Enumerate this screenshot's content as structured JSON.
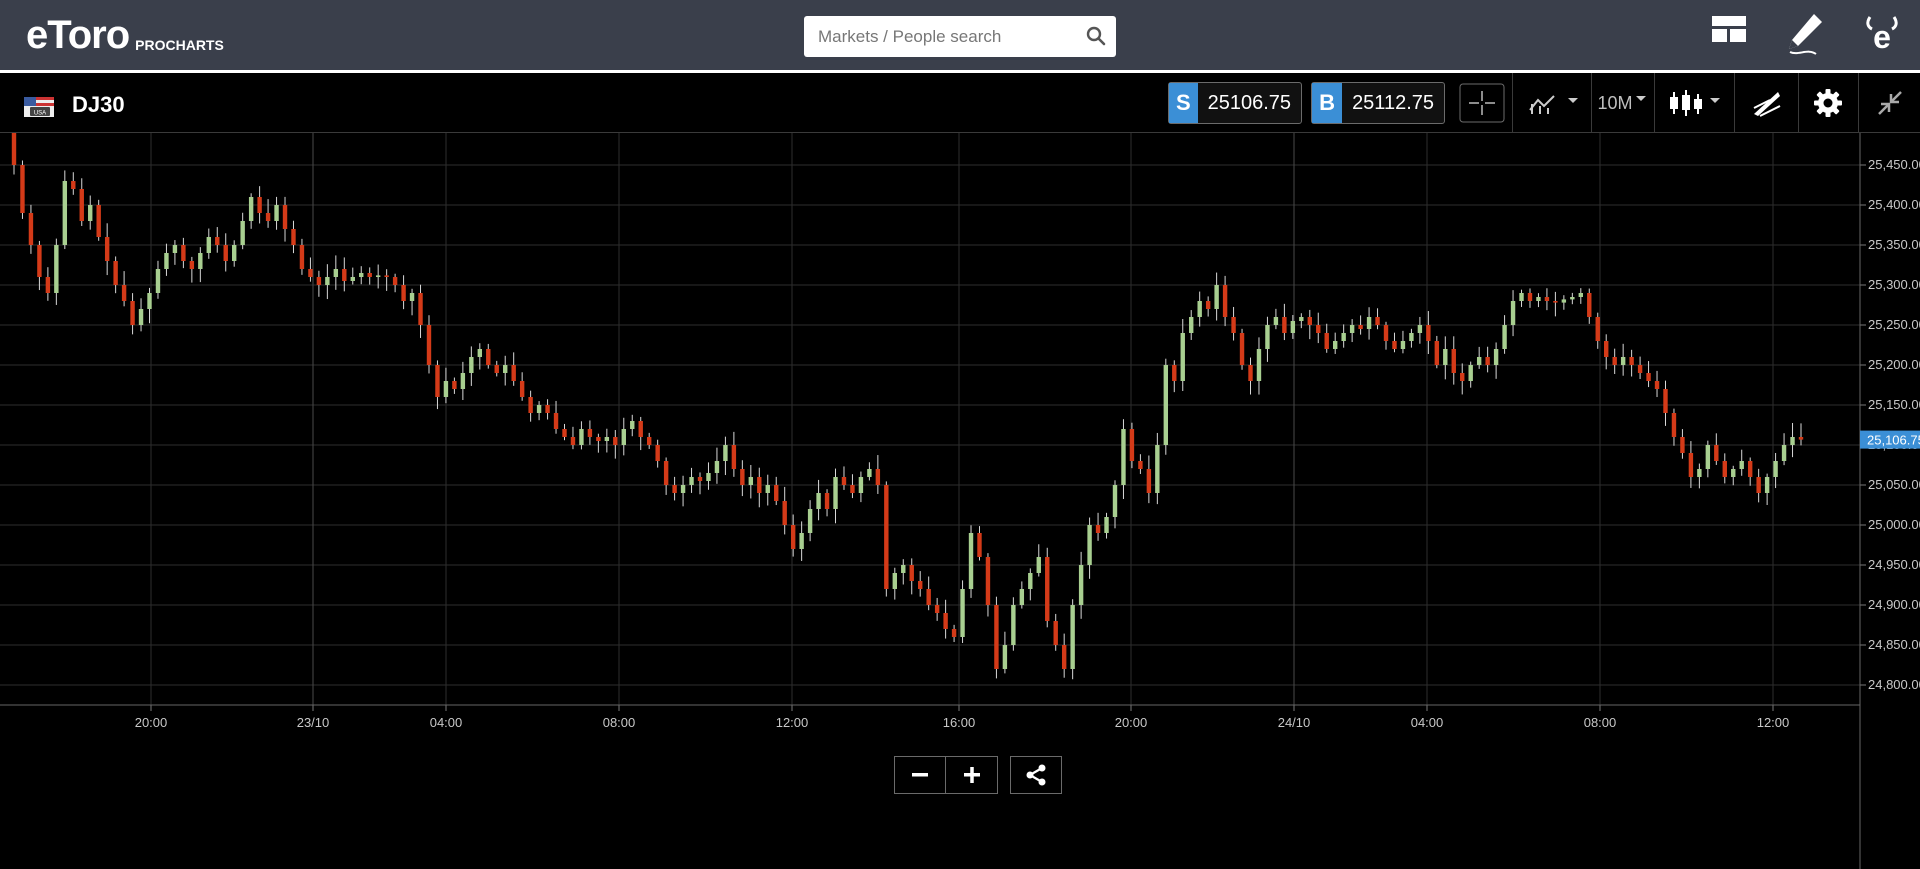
{
  "header": {
    "logo_text": "eToro",
    "logo_sub": "PROCHARTS",
    "search_placeholder": "Markets / People search"
  },
  "toolbar": {
    "instrument": "DJ30",
    "flag_label": "USA",
    "sell_tag": "S",
    "sell_price": "25106.75",
    "buy_tag": "B",
    "buy_price": "25112.75",
    "interval": "10M"
  },
  "chart_data": {
    "type": "candlestick",
    "instrument": "DJ30",
    "ylim": [
      24775,
      25490
    ],
    "y_ticks": [
      "25,450.00",
      "25,400.00",
      "25,350.00",
      "25,300.00",
      "25,250.00",
      "25,200.00",
      "25,150.00",
      "25,100.00",
      "25,050.00",
      "25,000.00",
      "24,950.00",
      "24,900.00",
      "24,850.00",
      "24,800.00"
    ],
    "y_tick_values": [
      25450,
      25400,
      25350,
      25300,
      25250,
      25200,
      25150,
      25100,
      25050,
      25000,
      24950,
      24900,
      24850,
      24800
    ],
    "x_ticks": [
      "20:00",
      "23/10",
      "04:00",
      "08:00",
      "12:00",
      "16:00",
      "20:00",
      "24/10",
      "04:00",
      "08:00",
      "12:00"
    ],
    "current_price": 25106.75,
    "current_price_label": "25,106.75",
    "colors": {
      "up": "#a8cf90",
      "down": "#d43a18",
      "grid": "#2e2e2e",
      "price_tag": "#3b8fd6"
    },
    "closes": [
      25450,
      25390,
      25350,
      25310,
      25290,
      25350,
      25430,
      25420,
      25380,
      25400,
      25360,
      25330,
      25300,
      25280,
      25250,
      25270,
      25290,
      25320,
      25340,
      25350,
      25330,
      25320,
      25340,
      25360,
      25350,
      25330,
      25350,
      25380,
      25410,
      25390,
      25380,
      25400,
      25370,
      25350,
      25320,
      25310,
      25300,
      25310,
      25320,
      25305,
      25310,
      25315,
      25310,
      25312,
      25310,
      25300,
      25280,
      25290,
      25250,
      25200,
      25160,
      25180,
      25170,
      25190,
      25210,
      25220,
      25200,
      25190,
      25200,
      25180,
      25160,
      25140,
      25150,
      25140,
      25120,
      25110,
      25100,
      25120,
      25110,
      25105,
      25110,
      25100,
      25120,
      25130,
      25110,
      25100,
      25080,
      25050,
      25040,
      25050,
      25060,
      25055,
      25065,
      25080,
      25100,
      25070,
      25050,
      25060,
      25040,
      25050,
      25030,
      25000,
      24970,
      24990,
      25020,
      25040,
      25020,
      25060,
      25050,
      25040,
      25060,
      25070,
      25050,
      24920,
      24940,
      24950,
      24930,
      24920,
      24900,
      24890,
      24870,
      24860,
      24920,
      24990,
      24960,
      24900,
      24820,
      24850,
      24900,
      24920,
      24940,
      24960,
      24880,
      24850,
      24820,
      24900,
      24950,
      25000,
      24990,
      25010,
      25050,
      25120,
      25080,
      25070,
      25040,
      25100,
      25200,
      25180,
      25240,
      25260,
      25280,
      25270,
      25300,
      25260,
      25240,
      25200,
      25180,
      25220,
      25250,
      25260,
      25240,
      25255,
      25260,
      25250,
      25240,
      25220,
      25230,
      25240,
      25250,
      25245,
      25260,
      25250,
      25230,
      25220,
      25230,
      25240,
      25250,
      25230,
      25200,
      25220,
      25190,
      25180,
      25200,
      25210,
      25200,
      25220,
      25250,
      25280,
      25290,
      25280,
      25285,
      25280,
      25278,
      25282,
      25285,
      25290,
      25260,
      25230,
      25210,
      25200,
      25210,
      25200,
      25190,
      25180,
      25170,
      25140,
      25110,
      25090,
      25060,
      25070,
      25100,
      25080,
      25060,
      25070,
      25080,
      25060,
      25040,
      25060,
      25080,
      25100,
      25110,
      25106.75
    ]
  }
}
